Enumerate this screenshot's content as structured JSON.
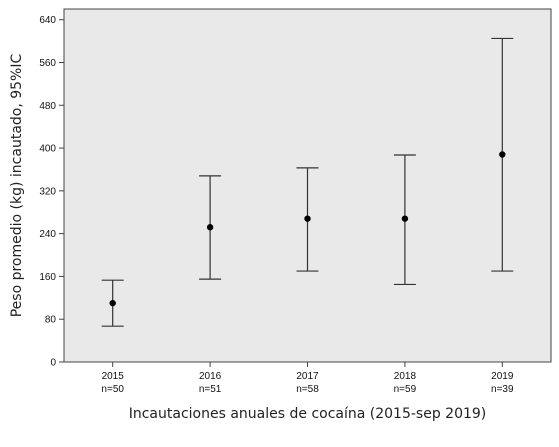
{
  "chart_data": {
    "type": "error_bar",
    "xlabel": "Incautaciones anuales de cocaína (2015-sep 2019)",
    "ylabel": "Peso promedio (kg) incautado, 95%IC",
    "ylim": [
      0,
      660
    ],
    "yticks": [
      0,
      80,
      160,
      240,
      320,
      400,
      480,
      560,
      640
    ],
    "grid": false,
    "legend": "none",
    "categories": [
      "2015",
      "2016",
      "2017",
      "2018",
      "2019"
    ],
    "n_labels": [
      "n=50",
      "n=51",
      "n=58",
      "n=59",
      "n=39"
    ],
    "mean": [
      110,
      252,
      268,
      268,
      388
    ],
    "lower": [
      67,
      155,
      170,
      145,
      170
    ],
    "upper": [
      153,
      348,
      363,
      387,
      605
    ]
  },
  "colors": {
    "plot_background": "#e9e9e9",
    "marker": "#000000",
    "error_bar": "#333333",
    "axis": "#444444"
  }
}
